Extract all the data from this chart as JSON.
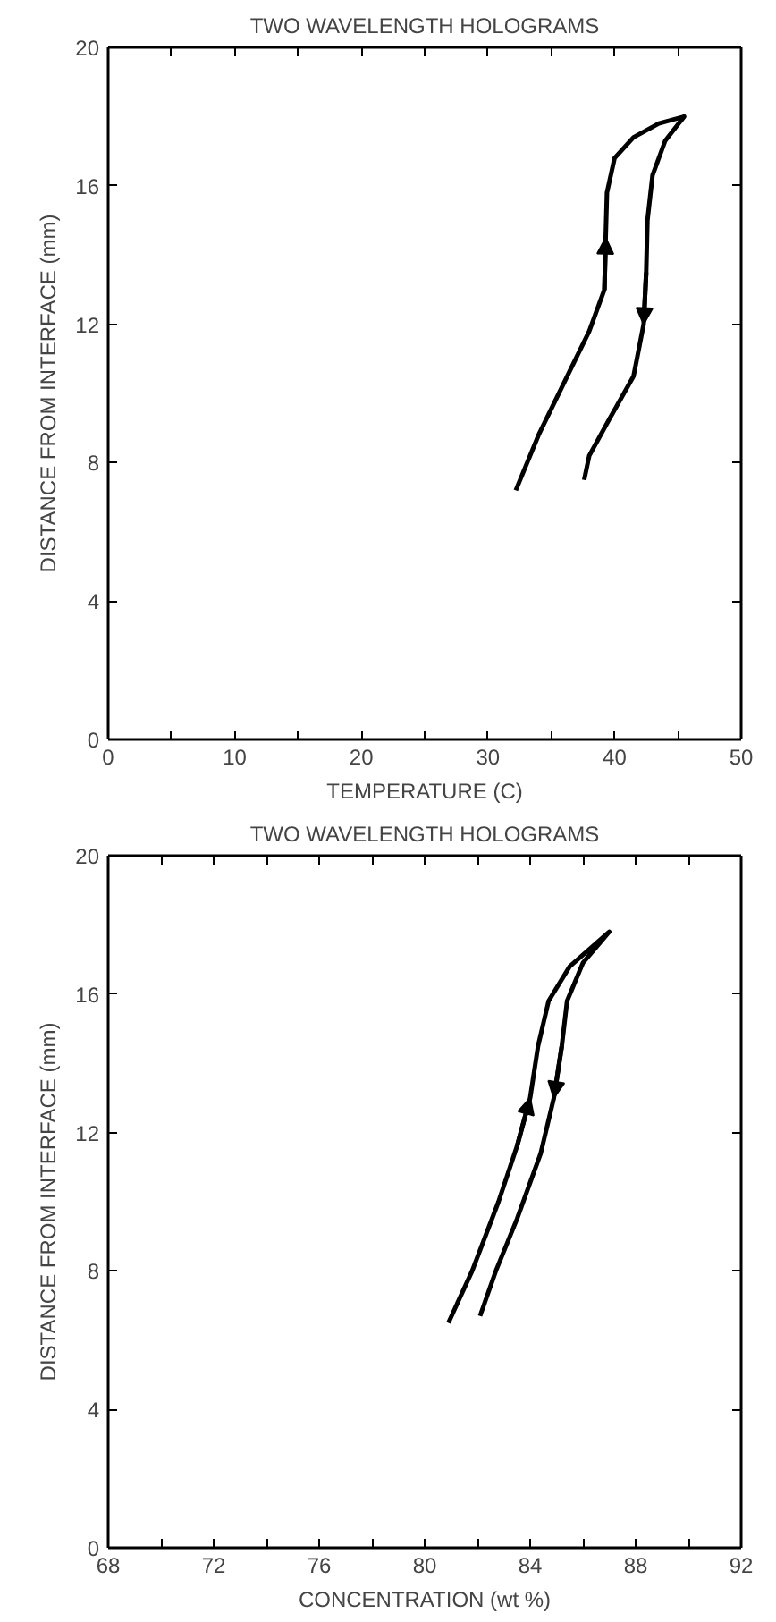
{
  "chart_data": [
    {
      "type": "line",
      "title": "TWO WAVELENGTH HOLOGRAMS",
      "xlabel": "TEMPERATURE (C)",
      "ylabel": "DISTANCE FROM INTERFACE (mm)",
      "xlim": [
        0,
        50
      ],
      "ylim": [
        0,
        20
      ],
      "xticks": [
        0,
        {
          "value": 5,
          "label": null
        },
        10,
        {
          "value": 15,
          "label": null
        },
        20,
        {
          "value": 25,
          "label": null
        },
        30,
        {
          "value": 35,
          "label": null
        },
        40,
        {
          "value": 45,
          "label": null
        },
        50
      ],
      "yticks": [
        0,
        4,
        8,
        12,
        16,
        20
      ],
      "grid": false,
      "series": [
        {
          "color": "#000000",
          "x": [
            32.2,
            34,
            36,
            38,
            39.2,
            39.3,
            39.4,
            40,
            41.5,
            43.5,
            45.5,
            44,
            43,
            42.6,
            42.5,
            42.3,
            41.5,
            39.5,
            38,
            37.6
          ],
          "values": [
            7.2,
            8.8,
            10.3,
            11.8,
            13,
            14.5,
            15.8,
            16.8,
            17.4,
            17.8,
            18,
            17.3,
            16.3,
            15,
            13.5,
            12,
            10.5,
            9.2,
            8.2,
            7.5
          ]
        }
      ]
    },
    {
      "type": "line",
      "title": "TWO WAVELENGTH HOLOGRAMS",
      "xlabel": "CONCENTRATION (wt %)",
      "ylabel": "DISTANCE FROM INTERFACE (mm)",
      "xlim": [
        68,
        92
      ],
      "ylim": [
        0,
        20
      ],
      "xticks": [
        68,
        {
          "value": 70,
          "label": null
        },
        72,
        {
          "value": 74,
          "label": null
        },
        76,
        {
          "value": 78,
          "label": null
        },
        80,
        {
          "value": 82,
          "label": null
        },
        84,
        {
          "value": 86,
          "label": null
        },
        88,
        {
          "value": 90,
          "label": null
        },
        92
      ],
      "yticks": [
        0,
        4,
        8,
        12,
        16,
        20
      ],
      "grid": false,
      "series": [
        {
          "color": "#000000",
          "x": [
            80.9,
            81.8,
            82.8,
            83.5,
            84,
            84.3,
            84.7,
            85.5,
            87,
            86,
            85.4,
            85.2,
            84.9,
            84.4,
            83.5,
            82.7,
            82.1
          ],
          "values": [
            6.5,
            8,
            10,
            11.6,
            13,
            14.5,
            15.8,
            16.8,
            17.8,
            16.9,
            15.8,
            14.5,
            13,
            11.4,
            9.5,
            8,
            6.7
          ]
        }
      ]
    }
  ]
}
